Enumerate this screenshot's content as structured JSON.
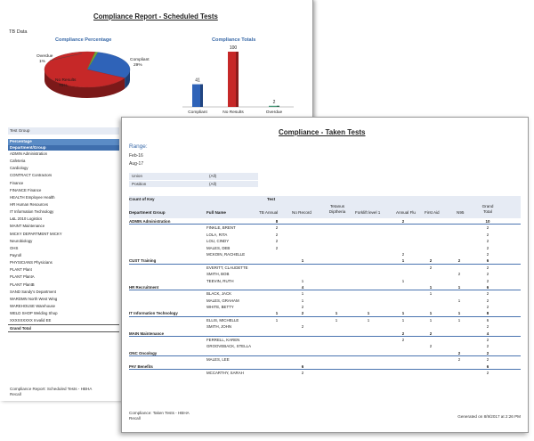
{
  "scheduled_report": {
    "title": "Compliance Report - Scheduled Tests",
    "tb_label": "TB Data",
    "pie_title": "Compliance Percentage",
    "bar_title": "Compliance Totals",
    "pie_labels": {
      "overdue_name": "Overdue",
      "overdue_pct": "1%",
      "compliant_name": "Compliant",
      "compliant_pct": "29%",
      "noresults_name": "No Results",
      "noresults_pct": "70%"
    },
    "test_group_label": "Test Group",
    "left_header": "Percentage",
    "left_subheader": "Department/Group",
    "departments": [
      "ADMIN Administration",
      "Cafeteria",
      "Cardiology",
      "CONTRACT Contractors",
      "Finance",
      "FINANCE Finance",
      "HEALTH Employee Health",
      "HR Human Resources",
      "IT Information Technology",
      "L&L 2010 Logistics",
      "MAINT Maintenance",
      "MICKY DEPARTMENT MICKY",
      "Neurobiology",
      "OHS",
      "Payroll",
      "PHYSICIANS Physicians",
      "PLANT Plant",
      "PLANT PlantA",
      "PLANT PlantB",
      "SAND Sandy's Department",
      "WARDMN North West Wing",
      "WAREHOUSE Warehouse",
      "WELD SHOP Welding Shop",
      "XXXXXXXXX Invalid EE"
    ],
    "grand_total_label": "Grand Total",
    "footer_line1": "Compliance Report: Scheduled Tests - HBHA",
    "footer_line2": "Recall"
  },
  "chart_data": [
    {
      "type": "pie",
      "title": "Compliance Percentage",
      "categories": [
        "Compliant",
        "No Results",
        "Overdue"
      ],
      "values": [
        29,
        70,
        1
      ],
      "colors": [
        "#2f63b8",
        "#c62828",
        "#6ea83a"
      ]
    },
    {
      "type": "bar",
      "title": "Compliance Totals",
      "categories": [
        "Compliant",
        "No Results",
        "Overdue"
      ],
      "values": [
        41,
        100,
        2
      ],
      "colors": [
        "#2f63b8",
        "#c62828",
        "#4a9a7a"
      ],
      "ylim": [
        0,
        100
      ],
      "grid": false,
      "value_labels": true
    }
  ],
  "taken_report": {
    "title": "Compliance - Taken Tests",
    "range_label": "Range:",
    "range_from": "Feb-16",
    "range_to": "Aug-17",
    "filters": [
      {
        "name": "Union",
        "value": "(All)"
      },
      {
        "name": "Position",
        "value": "(All)"
      }
    ],
    "header": {
      "count_of_key": "Count of Key",
      "test": "Test",
      "department_group": "Department Group",
      "full_name": "Full Name",
      "columns": [
        "TB Annual",
        "No Record",
        "Tetanus Diptheria",
        "Forklift level 1",
        "Annual Flu",
        "First Aid",
        "N95",
        "Grand Total"
      ]
    },
    "rows": [
      {
        "kind": "group",
        "dept": "ADMIN Administration",
        "name": "",
        "vals": [
          "8",
          "",
          "",
          "",
          "2",
          "",
          "",
          "10"
        ]
      },
      {
        "kind": "person",
        "dept": "",
        "name": "FINKLE, BRENT",
        "vals": [
          "2",
          "",
          "",
          "",
          "",
          "",
          "",
          "2"
        ]
      },
      {
        "kind": "person",
        "dept": "",
        "name": "LOLA, RITA",
        "vals": [
          "2",
          "",
          "",
          "",
          "",
          "",
          "",
          "2"
        ]
      },
      {
        "kind": "person",
        "dept": "",
        "name": "LOU, CINDY",
        "vals": [
          "2",
          "",
          "",
          "",
          "",
          "",
          "",
          "2"
        ]
      },
      {
        "kind": "person",
        "dept": "",
        "name": "MALES, DEB",
        "vals": [
          "2",
          "",
          "",
          "",
          "",
          "",
          "",
          "2"
        ]
      },
      {
        "kind": "person",
        "dept": "",
        "name": "MCKOIN, RACHELLE",
        "vals": [
          "",
          "",
          "",
          "",
          "2",
          "",
          "",
          "2"
        ]
      },
      {
        "kind": "group",
        "dept": "CUST Training",
        "name": "",
        "vals": [
          "",
          "1",
          "",
          "",
          "1",
          "2",
          "2",
          "6"
        ]
      },
      {
        "kind": "person",
        "dept": "",
        "name": "EVERITT, CLAUDETTE",
        "vals": [
          "",
          "",
          "",
          "",
          "",
          "2",
          "",
          "2"
        ]
      },
      {
        "kind": "person",
        "dept": "",
        "name": "SMITH, BOB",
        "vals": [
          "",
          "",
          "",
          "",
          "",
          "",
          "2",
          "2"
        ]
      },
      {
        "kind": "person",
        "dept": "",
        "name": "TEEVIN, RUTH",
        "vals": [
          "",
          "1",
          "",
          "",
          "1",
          "",
          "",
          "2"
        ]
      },
      {
        "kind": "group",
        "dept": "HR Recruitment",
        "name": "",
        "vals": [
          "",
          "4",
          "",
          "",
          "",
          "1",
          "1",
          "6"
        ]
      },
      {
        "kind": "person",
        "dept": "",
        "name": "BLACK, JACK",
        "vals": [
          "",
          "1",
          "",
          "",
          "",
          "1",
          "",
          "2"
        ]
      },
      {
        "kind": "person",
        "dept": "",
        "name": "MALES, GRAHAM",
        "vals": [
          "",
          "1",
          "",
          "",
          "",
          "",
          "1",
          "2"
        ]
      },
      {
        "kind": "person",
        "dept": "",
        "name": "WHITE, BETTY",
        "vals": [
          "",
          "2",
          "",
          "",
          "",
          "",
          "",
          "2"
        ]
      },
      {
        "kind": "group",
        "dept": "IT Information Technology",
        "name": "",
        "vals": [
          "1",
          "2",
          "1",
          "1",
          "1",
          "1",
          "1",
          "8"
        ]
      },
      {
        "kind": "person",
        "dept": "",
        "name": "ELLIS, MICHELLE",
        "vals": [
          "1",
          "",
          "1",
          "1",
          "1",
          "1",
          "1",
          "6"
        ]
      },
      {
        "kind": "person",
        "dept": "",
        "name": "SMITH, JOHN",
        "vals": [
          "",
          "2",
          "",
          "",
          "",
          "",
          "",
          "2"
        ]
      },
      {
        "kind": "group",
        "dept": "MAIN Maintenance",
        "name": "",
        "vals": [
          "",
          "",
          "",
          "",
          "2",
          "2",
          "",
          "4"
        ]
      },
      {
        "kind": "person",
        "dept": "",
        "name": "FERRELL, KAREN",
        "vals": [
          "",
          "",
          "",
          "",
          "2",
          "",
          "",
          "2"
        ]
      },
      {
        "kind": "person",
        "dept": "",
        "name": "GROOVEBACK, STELLA",
        "vals": [
          "",
          "",
          "",
          "",
          "",
          "2",
          "",
          "2"
        ]
      },
      {
        "kind": "group",
        "dept": "ONC Oncology",
        "name": "",
        "vals": [
          "",
          "",
          "",
          "",
          "",
          "",
          "2",
          "2"
        ]
      },
      {
        "kind": "person",
        "dept": "",
        "name": "MALES, LEE",
        "vals": [
          "",
          "",
          "",
          "",
          "",
          "",
          "2",
          "2"
        ]
      },
      {
        "kind": "group",
        "dept": "PAY Benefits",
        "name": "",
        "vals": [
          "",
          "6",
          "",
          "",
          "",
          "",
          "",
          "6"
        ]
      },
      {
        "kind": "person",
        "dept": "",
        "name": "MCCARTHY, SARAH",
        "vals": [
          "",
          "2",
          "",
          "",
          "",
          "",
          "",
          "2"
        ]
      }
    ],
    "footer_line1": "Compliance: Taken Tests - HBHA",
    "footer_line2": "Recall",
    "generated_on": "Generated on 8/9/2017 at 2:26 PM"
  }
}
